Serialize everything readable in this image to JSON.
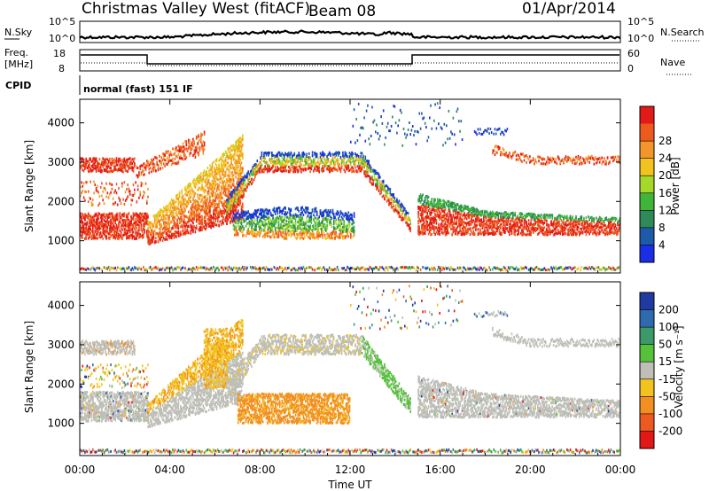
{
  "header": {
    "station": "Christmas Valley West (fitACF)",
    "beam": "Beam 08",
    "date": "01/Apr/2014"
  },
  "params": {
    "nsky_label": "N.Sky",
    "nsky_ticks": [
      "10^5",
      "10^0"
    ],
    "nsearch_label": "N.Search",
    "nsearch_ticks": [
      "10^5",
      "10^0"
    ],
    "freq_label_1": "Freq.",
    "freq_label_2": "[MHz]",
    "freq_ticks": [
      "18",
      "8"
    ],
    "nave_label": "Nave",
    "nave_ticks": [
      "60",
      "0"
    ],
    "cpid_label": "CPID",
    "cpid_value": "normal (fast) 151 IF"
  },
  "chart_data": [
    {
      "type": "heatmap",
      "panel": "power",
      "ylabel": "Slant Range [km]",
      "yticks": [
        1000,
        2000,
        3000,
        4000
      ],
      "ylim": [
        180,
        4600
      ],
      "xticks": [
        "00:00",
        "04:00",
        "08:00",
        "12:00",
        "16:00",
        "20:00",
        "00:00"
      ],
      "xlim_hours": [
        0,
        24
      ],
      "colorbar": {
        "label": "Power [dB]",
        "ticks": [
          "4",
          "8",
          "12",
          "16",
          "20",
          "24",
          "28"
        ],
        "colors": [
          "#1a2ee6",
          "#1f5aa8",
          "#2e8a58",
          "#3fb63a",
          "#a6d82a",
          "#f2c21e",
          "#f3952a",
          "#ee5a1e",
          "#e31a1a"
        ]
      }
    },
    {
      "type": "heatmap",
      "panel": "velocity",
      "ylabel": "Slant Range [km]",
      "yticks": [
        1000,
        2000,
        3000,
        4000
      ],
      "ylim": [
        180,
        4600
      ],
      "xticks": [
        "00:00",
        "04:00",
        "08:00",
        "12:00",
        "16:00",
        "20:00",
        "00:00"
      ],
      "xlim_hours": [
        0,
        24
      ],
      "xlabel": "Time UT",
      "colorbar": {
        "label": "Velocity [m s-1]",
        "ticks": [
          "200",
          "100",
          "50",
          "15",
          "-15",
          "-50",
          "-100",
          "-200"
        ],
        "colors": [
          "#1f3aa0",
          "#2f6ab0",
          "#3c9a6a",
          "#55c23a",
          "#bfbfb8",
          "#f2c21e",
          "#f38f22",
          "#ec5a20",
          "#e21818"
        ]
      }
    }
  ],
  "legend_labels": {
    "power_cb_label": "Power [dB]",
    "velocity_cb_label": "Velocity [m s⁻¹]",
    "time_label": "Time UT"
  }
}
